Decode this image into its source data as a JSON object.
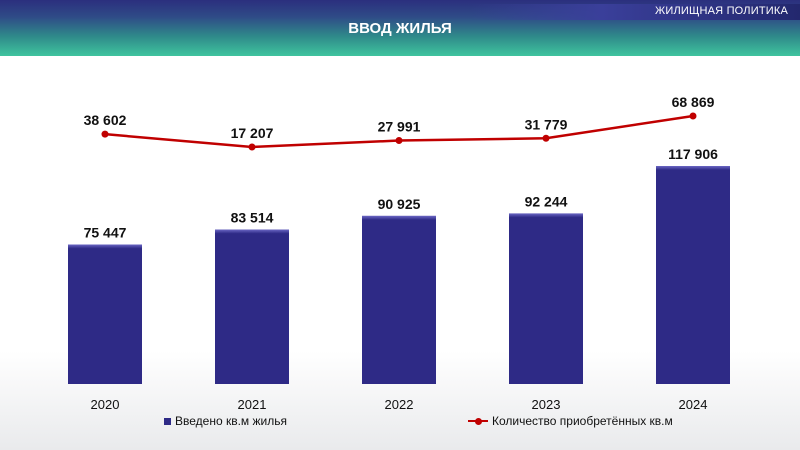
{
  "header": {
    "section_tag": "ЖИЛИЩНАЯ ПОЛИТИКА",
    "title": "ВВОД ЖИЛЬЯ"
  },
  "colors": {
    "bar": "#2e2a86",
    "line": "#c00000"
  },
  "chart_data": {
    "type": "bar",
    "categories": [
      "2020",
      "2021",
      "2022",
      "2023",
      "2024"
    ],
    "series": [
      {
        "name": "Введено кв.м жилья",
        "type": "bar",
        "values": [
          75447,
          83514,
          90925,
          92244,
          117906
        ],
        "labels": [
          "75 447",
          "83 514",
          "90 925",
          "92 244",
          "117 906"
        ]
      },
      {
        "name": "Количество приобретённых кв.м",
        "type": "line",
        "values": [
          38602,
          17207,
          27991,
          31779,
          68869
        ],
        "labels": [
          "38 602",
          "17 207",
          "27 991",
          "31 779",
          "68 869"
        ]
      }
    ],
    "legend": "bottom"
  }
}
